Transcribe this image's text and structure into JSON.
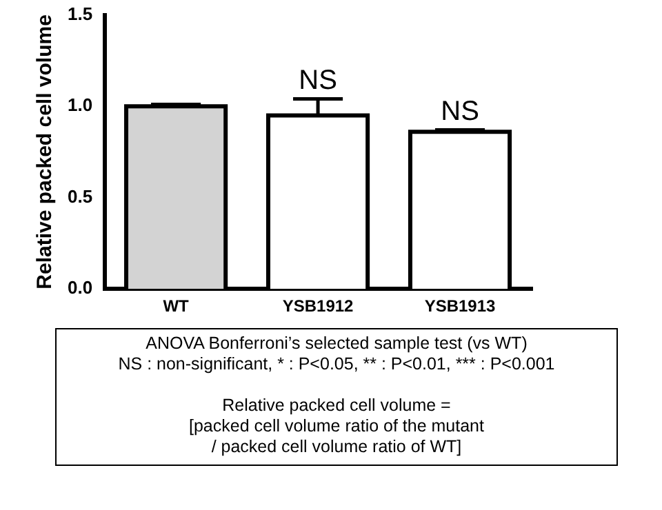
{
  "chart_data": {
    "type": "bar",
    "ylabel": "Relative packed cell volume",
    "categories": [
      "WT",
      "YSB1912",
      "YSB1913"
    ],
    "values": [
      1.0,
      0.95,
      0.86
    ],
    "errors": [
      [
        1.0,
        1.01
      ],
      [
        0.95,
        1.04
      ],
      [
        0.86,
        0.87
      ]
    ],
    "colors": [
      "#d3d3d3",
      "#ffffff",
      "#ffffff"
    ],
    "ylim": [
      0,
      1.5
    ],
    "yticks": [
      {
        "value": 0,
        "label": "0.0"
      },
      {
        "value": 0.5,
        "label": "0.5"
      },
      {
        "value": 1,
        "label": "1.0"
      },
      {
        "value": 1.5,
        "label": "1.5"
      }
    ],
    "grid": false,
    "legend": false,
    "annotations": [
      {
        "text": "NS",
        "x": "YSB1912",
        "y": 1.04
      },
      {
        "text": "NS",
        "x": "YSB1913",
        "y": 0.87
      },
      "ANOVA Bonferroni’s selected sample test (vs WT)",
      "NS : non-significant, * : P<0.05, ** : P<0.01, *** : P<0.001",
      "Relative packed cell volume =",
      "[packed cell volume ratio of the mutant",
      "/ packed cell volume ratio of WT]"
    ]
  }
}
